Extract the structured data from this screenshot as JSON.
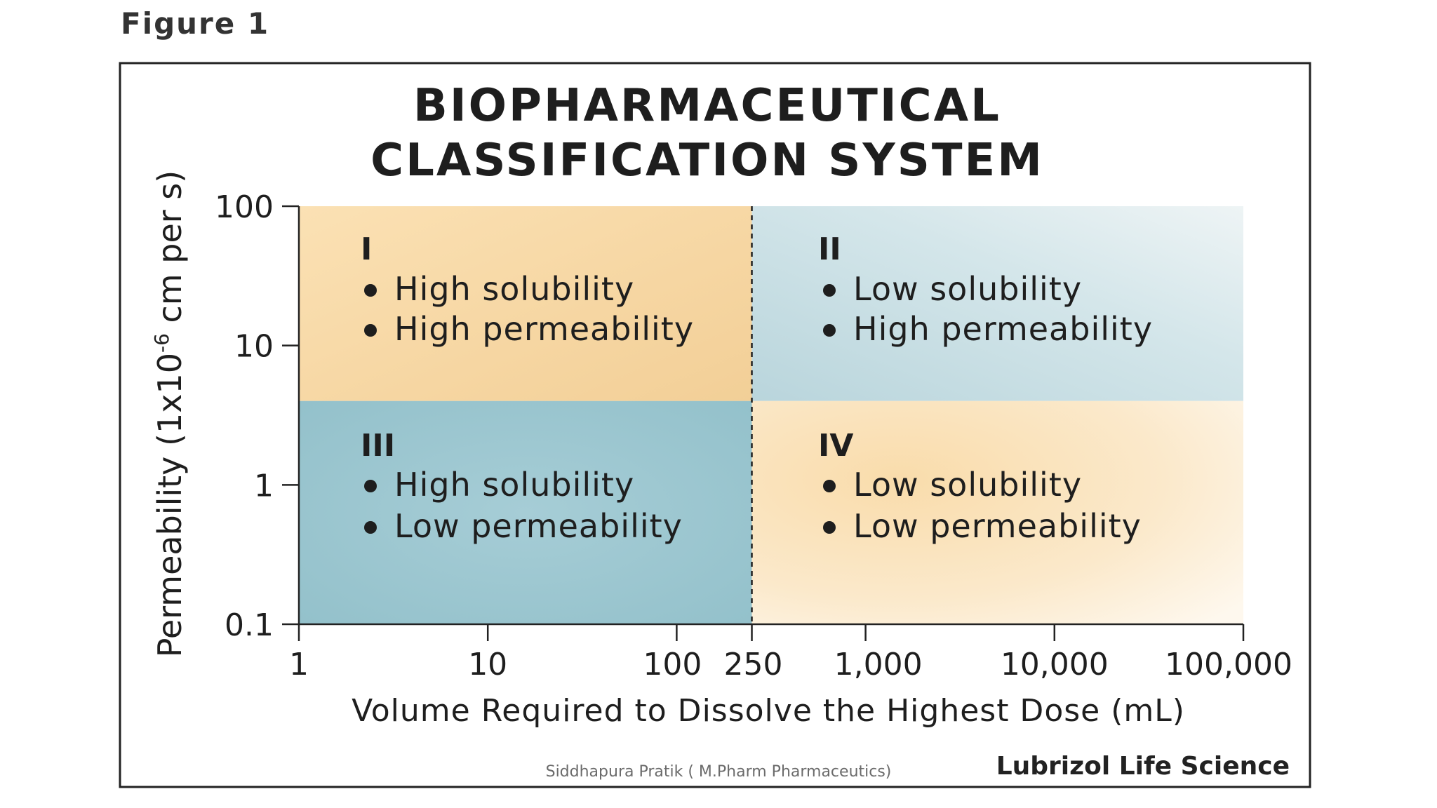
{
  "page": {
    "figure_label": "Figure 1",
    "watermark": "Siddhapura Pratik ( M.Pharm Pharmaceutics)",
    "credit": "Lubrizol Life Science"
  },
  "chart_data": {
    "type": "quadrant",
    "title_lines": [
      "BIOPHARMACEUTICAL",
      "CLASSIFICATION SYSTEM"
    ],
    "xlabel": "Volume Required to Dissolve the Highest Dose (mL)",
    "ylabel_prefix": "Permeability (1x10",
    "ylabel_exponent": "-6",
    "ylabel_suffix": " cm per s)",
    "x_scale": "log",
    "y_scale": "log",
    "xlim": [
      1,
      100000
    ],
    "ylim": [
      0.1,
      100
    ],
    "x_ticks": [
      {
        "value": 1,
        "label": "1"
      },
      {
        "value": 10,
        "label": "10"
      },
      {
        "value": 100,
        "label": "100"
      },
      {
        "value": 250,
        "label": "250"
      },
      {
        "value": 1000,
        "label": "1,000"
      },
      {
        "value": 10000,
        "label": "10,000"
      },
      {
        "value": 100000,
        "label": "100,000"
      }
    ],
    "y_ticks": [
      {
        "value": 100,
        "label": "100"
      },
      {
        "value": 10,
        "label": "10"
      },
      {
        "value": 1,
        "label": "1"
      },
      {
        "value": 0.1,
        "label": "0.1"
      }
    ],
    "x_divider": 250,
    "y_divider": 4,
    "classes": [
      {
        "id": "I",
        "roman": "I",
        "solubility": "High solubility",
        "permeability": "High permeability",
        "x_range": [
          1,
          250
        ],
        "y_range": [
          4,
          100
        ],
        "color": "#f6d7a4"
      },
      {
        "id": "II",
        "roman": "II",
        "solubility": "Low solubility",
        "permeability": "High permeability",
        "x_range": [
          250,
          100000
        ],
        "y_range": [
          4,
          100
        ],
        "color": "#c9dfe6"
      },
      {
        "id": "III",
        "roman": "III",
        "solubility": "High solubility",
        "permeability": "Low permeability",
        "x_range": [
          1,
          250
        ],
        "y_range": [
          0.1,
          4
        ],
        "color": "#a3ccd5"
      },
      {
        "id": "IV",
        "roman": "IV",
        "solubility": "Low solubility",
        "permeability": "Low permeability",
        "x_range": [
          250,
          100000
        ],
        "y_range": [
          0.1,
          4
        ],
        "color": "#fbe3b8"
      }
    ]
  }
}
